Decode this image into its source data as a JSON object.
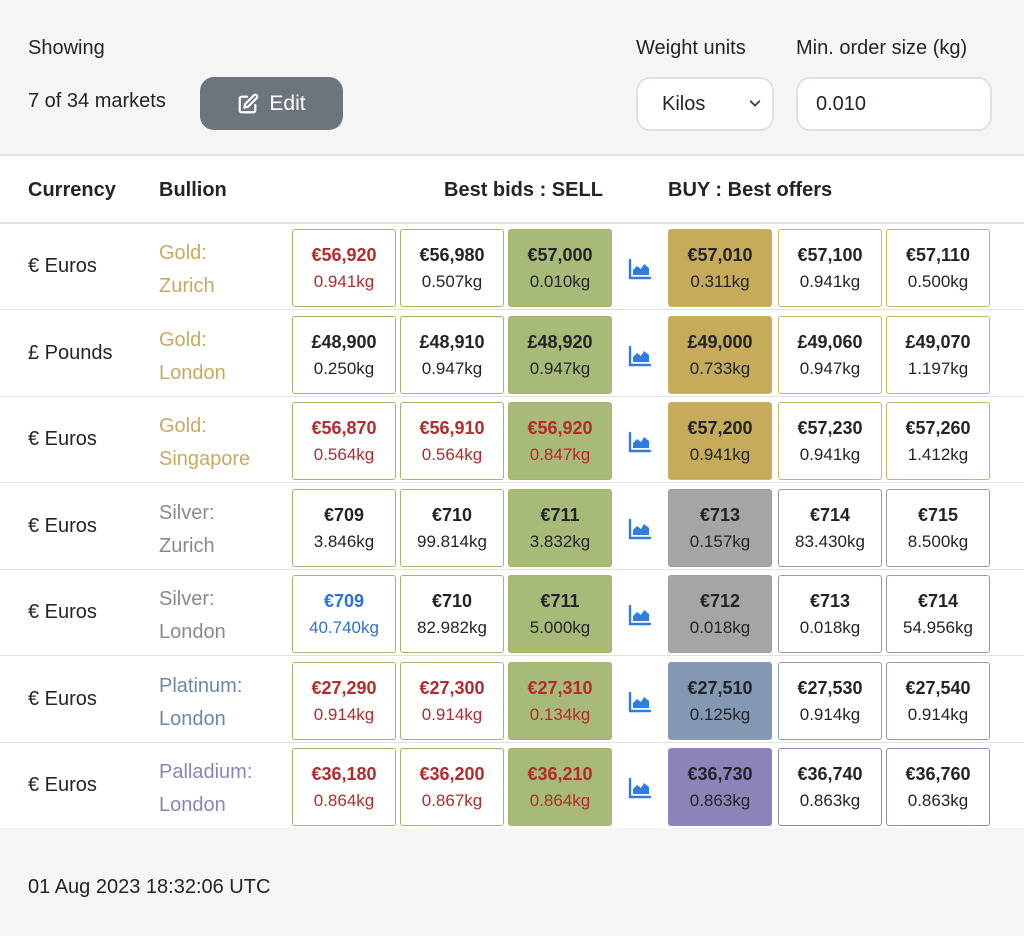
{
  "header": {
    "showing_label": "Showing",
    "count_text": "7 of 34 markets",
    "edit_label": "Edit",
    "units_label": "Weight units",
    "units_value": "Kilos",
    "min_label": "Min. order size (kg)",
    "min_value": "0.010"
  },
  "columns": {
    "currency": "Currency",
    "bullion": "Bullion",
    "bids": "Best bids : SELL",
    "offers": "BUY : Best offers"
  },
  "rows": [
    {
      "currency": "€ Euros",
      "bullion_metal": "Gold:",
      "bullion_place": "Zurich",
      "metal_color": "#c9a960",
      "offer_fill": "#c6ab5a",
      "cell_border": "#c9b46a",
      "bids": [
        {
          "price": "€56,920",
          "qty": "0.941kg",
          "color": "#b52a2a"
        },
        {
          "price": "€56,980",
          "qty": "0.507kg",
          "color": "#212529"
        },
        {
          "price": "€57,000",
          "qty": "0.010kg",
          "color": "#212529"
        }
      ],
      "offers": [
        {
          "price": "€57,010",
          "qty": "0.311kg"
        },
        {
          "price": "€57,100",
          "qty": "0.941kg"
        },
        {
          "price": "€57,110",
          "qty": "0.500kg"
        }
      ]
    },
    {
      "currency": "£ Pounds",
      "bullion_metal": "Gold:",
      "bullion_place": "London",
      "metal_color": "#c9a960",
      "offer_fill": "#c6ab5a",
      "cell_border": "#c9b46a",
      "bids": [
        {
          "price": "£48,900",
          "qty": "0.250kg",
          "color": "#212529"
        },
        {
          "price": "£48,910",
          "qty": "0.947kg",
          "color": "#212529"
        },
        {
          "price": "£48,920",
          "qty": "0.947kg",
          "color": "#212529"
        }
      ],
      "offers": [
        {
          "price": "£49,000",
          "qty": "0.733kg"
        },
        {
          "price": "£49,060",
          "qty": "0.947kg"
        },
        {
          "price": "£49,070",
          "qty": "1.197kg"
        }
      ]
    },
    {
      "currency": "€ Euros",
      "bullion_metal": "Gold:",
      "bullion_place": "Singapore",
      "metal_color": "#c9a960",
      "offer_fill": "#c6ab5a",
      "cell_border": "#c9b46a",
      "bids": [
        {
          "price": "€56,870",
          "qty": "0.564kg",
          "color": "#b52a2a"
        },
        {
          "price": "€56,910",
          "qty": "0.564kg",
          "color": "#b52a2a"
        },
        {
          "price": "€56,920",
          "qty": "0.847kg",
          "color": "#b52a2a"
        }
      ],
      "offers": [
        {
          "price": "€57,200",
          "qty": "0.941kg"
        },
        {
          "price": "€57,230",
          "qty": "0.941kg"
        },
        {
          "price": "€57,260",
          "qty": "1.412kg"
        }
      ]
    },
    {
      "currency": "€ Euros",
      "bullion_metal": "Silver:",
      "bullion_place": "Zurich",
      "metal_color": "#8a8a8a",
      "offer_fill": "#a5a5a5",
      "cell_border": "#9a9a9a",
      "bids": [
        {
          "price": "€709",
          "qty": "3.846kg",
          "color": "#212529"
        },
        {
          "price": "€710",
          "qty": "99.814kg",
          "color": "#212529"
        },
        {
          "price": "€711",
          "qty": "3.832kg",
          "color": "#212529"
        }
      ],
      "offers": [
        {
          "price": "€713",
          "qty": "0.157kg"
        },
        {
          "price": "€714",
          "qty": "83.430kg"
        },
        {
          "price": "€715",
          "qty": "8.500kg"
        }
      ]
    },
    {
      "currency": "€ Euros",
      "bullion_metal": "Silver:",
      "bullion_place": "London",
      "metal_color": "#8a8a8a",
      "offer_fill": "#a5a5a5",
      "cell_border": "#9a9a9a",
      "bids": [
        {
          "price": "€709",
          "qty": "40.740kg",
          "color": "#2f6fdb"
        },
        {
          "price": "€710",
          "qty": "82.982kg",
          "color": "#212529"
        },
        {
          "price": "€711",
          "qty": "5.000kg",
          "color": "#212529"
        }
      ],
      "offers": [
        {
          "price": "€712",
          "qty": "0.018kg"
        },
        {
          "price": "€713",
          "qty": "0.018kg"
        },
        {
          "price": "€714",
          "qty": "54.956kg"
        }
      ]
    },
    {
      "currency": "€ Euros",
      "bullion_metal": "Platinum:",
      "bullion_place": "London",
      "metal_color": "#6f86a6",
      "offer_fill": "#8298b3",
      "cell_border": "#8a9bb3",
      "bids": [
        {
          "price": "€27,290",
          "qty": "0.914kg",
          "color": "#b52a2a"
        },
        {
          "price": "€27,300",
          "qty": "0.914kg",
          "color": "#b52a2a"
        },
        {
          "price": "€27,310",
          "qty": "0.134kg",
          "color": "#b52a2a"
        }
      ],
      "offers": [
        {
          "price": "€27,510",
          "qty": "0.125kg"
        },
        {
          "price": "€27,530",
          "qty": "0.914kg"
        },
        {
          "price": "€27,540",
          "qty": "0.914kg"
        }
      ]
    },
    {
      "currency": "€ Euros",
      "bullion_metal": "Palladium:",
      "bullion_place": "London",
      "metal_color": "#8f82b8",
      "offer_fill": "#8c84b8",
      "cell_border": "#9188c0",
      "bids": [
        {
          "price": "€36,180",
          "qty": "0.864kg",
          "color": "#b52a2a"
        },
        {
          "price": "€36,200",
          "qty": "0.867kg",
          "color": "#b52a2a"
        },
        {
          "price": "€36,210",
          "qty": "0.864kg",
          "color": "#b52a2a"
        }
      ],
      "offers": [
        {
          "price": "€36,730",
          "qty": "0.863kg"
        },
        {
          "price": "€36,740",
          "qty": "0.863kg"
        },
        {
          "price": "€36,760",
          "qty": "0.863kg"
        }
      ]
    }
  ],
  "colors": {
    "bid_border": "#a5b56a",
    "best_bid_fill": "#a8ba78",
    "chart_icon": "#2f7de1"
  },
  "chart_icon_name": "area-chart-icon",
  "footer": {
    "timestamp": "01 Aug 2023 18:32:06 UTC"
  }
}
